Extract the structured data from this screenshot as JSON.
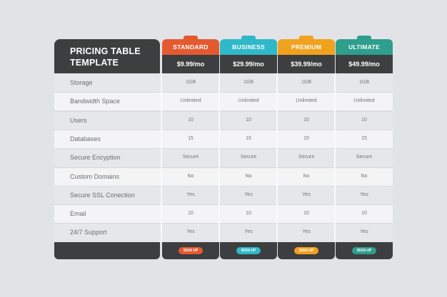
{
  "title": {
    "line1": "PRICING TABLE",
    "line2": "TEMPLATE"
  },
  "plans": [
    {
      "name": "STANDARD",
      "price": "$9.99/mo",
      "color": "#e45a30",
      "cta": "SIGN UP"
    },
    {
      "name": "BUSINESS",
      "price": "$29.99/mo",
      "color": "#2fb8c8",
      "cta": "SIGN UP"
    },
    {
      "name": "PREMIUM",
      "price": "$39.99/mo",
      "color": "#f0a21e",
      "cta": "SIGN UP"
    },
    {
      "name": "ULTIMATE",
      "price": "$49.99/mo",
      "color": "#2e9e8d",
      "cta": "SIGN UP"
    }
  ],
  "features": [
    {
      "label": "Storage",
      "values": [
        "1GB",
        "1GB",
        "1GB",
        "1GB"
      ]
    },
    {
      "label": "Bandwidth Space",
      "values": [
        "Unlimited",
        "Unlimited",
        "Unlimited",
        "Unlimited"
      ]
    },
    {
      "label": "Users",
      "values": [
        "10",
        "10",
        "10",
        "10"
      ]
    },
    {
      "label": "Databases",
      "values": [
        "15",
        "15",
        "15",
        "15"
      ]
    },
    {
      "label": "Secure Encyption",
      "values": [
        "Secure",
        "Secure",
        "Secure",
        "Secure"
      ]
    },
    {
      "label": "Custom Domains",
      "values": [
        "No",
        "No",
        "No",
        "No"
      ]
    },
    {
      "label": "Secure SSL Conection",
      "values": [
        "Yes",
        "Yes",
        "Yes",
        "Yes"
      ]
    },
    {
      "label": "Email",
      "values": [
        "10",
        "10",
        "10",
        "10"
      ]
    },
    {
      "label": "24/7 Support",
      "values": [
        "Yes",
        "Yes",
        "Yes",
        "Yes"
      ]
    }
  ]
}
